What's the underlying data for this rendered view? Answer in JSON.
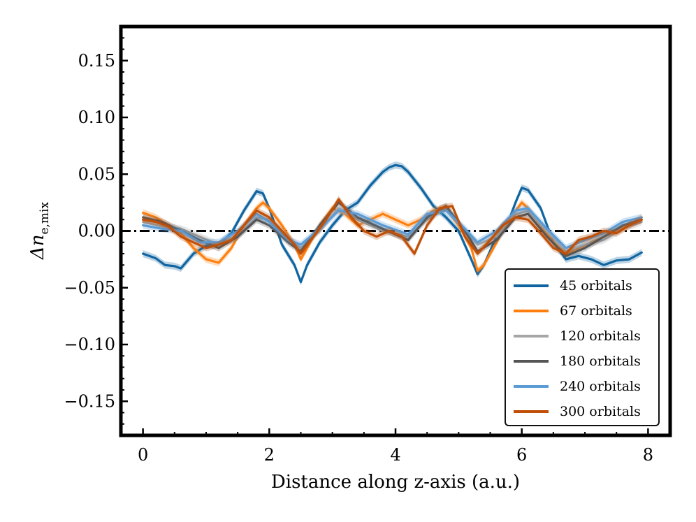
{
  "chart_data": {
    "type": "line",
    "xlabel": "Distance along z-axis (a.u.)",
    "ylabel_base": "Δn",
    "ylabel_sub": "e,mix",
    "xlim": [
      -0.35,
      8.35
    ],
    "ylim": [
      -0.18,
      0.18
    ],
    "xticks": [
      0,
      2,
      4,
      6,
      8
    ],
    "yticks": [
      -0.15,
      -0.1,
      -0.05,
      0.0,
      0.05,
      0.1,
      0.15
    ],
    "ytick_labels": [
      "−0.15",
      "−0.10",
      "−0.05",
      "0.00",
      "0.05",
      "0.10",
      "0.15"
    ],
    "reference_line": {
      "y": 0.0,
      "style": "dash-dot",
      "color": "#000000"
    },
    "legend_position": "lower-right",
    "series": [
      {
        "name": "45 orbitals",
        "color": "#1065a0",
        "points": [
          [
            0,
            -0.02
          ],
          [
            0.2,
            -0.024
          ],
          [
            0.35,
            -0.03
          ],
          [
            0.5,
            -0.031
          ],
          [
            0.6,
            -0.033
          ],
          [
            0.8,
            -0.02
          ],
          [
            1.0,
            -0.013
          ],
          [
            1.2,
            -0.012
          ],
          [
            1.4,
            -0.002
          ],
          [
            1.6,
            0.018
          ],
          [
            1.8,
            0.035
          ],
          [
            1.9,
            0.033
          ],
          [
            2.0,
            0.02
          ],
          [
            2.2,
            -0.012
          ],
          [
            2.4,
            -0.03
          ],
          [
            2.5,
            -0.045
          ],
          [
            2.6,
            -0.03
          ],
          [
            2.8,
            -0.01
          ],
          [
            3.0,
            0.005
          ],
          [
            3.2,
            0.018
          ],
          [
            3.4,
            0.025
          ],
          [
            3.6,
            0.04
          ],
          [
            3.8,
            0.052
          ],
          [
            3.9,
            0.056
          ],
          [
            4.0,
            0.058
          ],
          [
            4.1,
            0.057
          ],
          [
            4.2,
            0.052
          ],
          [
            4.4,
            0.038
          ],
          [
            4.6,
            0.022
          ],
          [
            4.8,
            0.012
          ],
          [
            5.0,
            0.0
          ],
          [
            5.2,
            -0.025
          ],
          [
            5.3,
            -0.038
          ],
          [
            5.4,
            -0.03
          ],
          [
            5.6,
            -0.005
          ],
          [
            5.8,
            0.01
          ],
          [
            5.9,
            0.025
          ],
          [
            6.0,
            0.038
          ],
          [
            6.1,
            0.036
          ],
          [
            6.3,
            0.02
          ],
          [
            6.5,
            -0.01
          ],
          [
            6.7,
            -0.025
          ],
          [
            6.9,
            -0.022
          ],
          [
            7.1,
            -0.025
          ],
          [
            7.3,
            -0.03
          ],
          [
            7.5,
            -0.026
          ],
          [
            7.7,
            -0.025
          ],
          [
            7.9,
            -0.019
          ]
        ]
      },
      {
        "name": "67 orbitals",
        "color": "#ff7f0e",
        "points": [
          [
            0,
            0.016
          ],
          [
            0.2,
            0.012
          ],
          [
            0.4,
            0.005
          ],
          [
            0.6,
            -0.002
          ],
          [
            0.8,
            -0.015
          ],
          [
            1.0,
            -0.025
          ],
          [
            1.2,
            -0.028
          ],
          [
            1.4,
            -0.015
          ],
          [
            1.6,
            0.005
          ],
          [
            1.8,
            0.02
          ],
          [
            1.9,
            0.025
          ],
          [
            2.0,
            0.02
          ],
          [
            2.2,
            0.005
          ],
          [
            2.4,
            -0.012
          ],
          [
            2.5,
            -0.025
          ],
          [
            2.6,
            -0.015
          ],
          [
            2.8,
            0.005
          ],
          [
            3.0,
            0.02
          ],
          [
            3.2,
            0.015
          ],
          [
            3.4,
            0.005
          ],
          [
            3.6,
            0.01
          ],
          [
            3.8,
            0.015
          ],
          [
            4.0,
            0.01
          ],
          [
            4.2,
            0.005
          ],
          [
            4.4,
            0.01
          ],
          [
            4.6,
            0.018
          ],
          [
            4.8,
            0.02
          ],
          [
            5.0,
            0.005
          ],
          [
            5.2,
            -0.015
          ],
          [
            5.3,
            -0.035
          ],
          [
            5.4,
            -0.03
          ],
          [
            5.6,
            -0.01
          ],
          [
            5.8,
            0.01
          ],
          [
            6.0,
            0.025
          ],
          [
            6.1,
            0.02
          ],
          [
            6.3,
            0.005
          ],
          [
            6.5,
            -0.01
          ],
          [
            6.7,
            -0.02
          ],
          [
            6.9,
            -0.015
          ],
          [
            7.1,
            -0.01
          ],
          [
            7.3,
            -0.005
          ],
          [
            7.5,
            0.0
          ],
          [
            7.7,
            0.005
          ],
          [
            7.9,
            0.012
          ]
        ]
      },
      {
        "name": "120 orbitals",
        "color": "#a6a6a6",
        "points": [
          [
            0,
            0.008
          ],
          [
            0.3,
            0.004
          ],
          [
            0.6,
            0.002
          ],
          [
            0.9,
            -0.005
          ],
          [
            1.2,
            -0.012
          ],
          [
            1.5,
            -0.005
          ],
          [
            1.8,
            0.012
          ],
          [
            2.0,
            0.01
          ],
          [
            2.3,
            -0.005
          ],
          [
            2.5,
            -0.015
          ],
          [
            2.8,
            0.0
          ],
          [
            3.1,
            0.02
          ],
          [
            3.4,
            0.01
          ],
          [
            3.8,
            0.0
          ],
          [
            4.2,
            -0.005
          ],
          [
            4.5,
            0.01
          ],
          [
            4.8,
            0.02
          ],
          [
            5.1,
            0.0
          ],
          [
            5.3,
            -0.012
          ],
          [
            5.6,
            -0.005
          ],
          [
            5.9,
            0.015
          ],
          [
            6.1,
            0.018
          ],
          [
            6.4,
            0.0
          ],
          [
            6.7,
            -0.018
          ],
          [
            7.0,
            -0.012
          ],
          [
            7.3,
            -0.008
          ],
          [
            7.6,
            0.002
          ],
          [
            7.9,
            0.008
          ]
        ]
      },
      {
        "name": "180 orbitals",
        "color": "#555555",
        "points": [
          [
            0,
            0.012
          ],
          [
            0.3,
            0.008
          ],
          [
            0.6,
            0.0
          ],
          [
            0.9,
            -0.008
          ],
          [
            1.2,
            -0.015
          ],
          [
            1.5,
            -0.005
          ],
          [
            1.8,
            0.01
          ],
          [
            2.0,
            0.005
          ],
          [
            2.3,
            -0.01
          ],
          [
            2.5,
            -0.018
          ],
          [
            2.8,
            0.005
          ],
          [
            3.1,
            0.025
          ],
          [
            3.4,
            0.012
          ],
          [
            3.8,
            0.002
          ],
          [
            4.2,
            -0.008
          ],
          [
            4.5,
            0.012
          ],
          [
            4.8,
            0.022
          ],
          [
            5.1,
            0.0
          ],
          [
            5.3,
            -0.018
          ],
          [
            5.6,
            -0.008
          ],
          [
            5.9,
            0.012
          ],
          [
            6.1,
            0.015
          ],
          [
            6.4,
            -0.005
          ],
          [
            6.7,
            -0.022
          ],
          [
            7.0,
            -0.015
          ],
          [
            7.3,
            -0.005
          ],
          [
            7.6,
            0.005
          ],
          [
            7.9,
            0.01
          ]
        ]
      },
      {
        "name": "240 orbitals",
        "color": "#5b9bd5",
        "points": [
          [
            0,
            0.005
          ],
          [
            0.3,
            0.002
          ],
          [
            0.6,
            0.0
          ],
          [
            0.9,
            -0.01
          ],
          [
            1.2,
            -0.01
          ],
          [
            1.5,
            0.0
          ],
          [
            1.8,
            0.015
          ],
          [
            2.0,
            0.008
          ],
          [
            2.3,
            -0.008
          ],
          [
            2.5,
            -0.012
          ],
          [
            2.8,
            0.002
          ],
          [
            3.1,
            0.018
          ],
          [
            3.4,
            0.015
          ],
          [
            3.8,
            0.005
          ],
          [
            4.2,
            -0.003
          ],
          [
            4.5,
            0.015
          ],
          [
            4.8,
            0.018
          ],
          [
            5.1,
            0.002
          ],
          [
            5.3,
            -0.01
          ],
          [
            5.6,
            0.0
          ],
          [
            5.9,
            0.018
          ],
          [
            6.1,
            0.02
          ],
          [
            6.4,
            0.002
          ],
          [
            6.7,
            -0.015
          ],
          [
            7.0,
            -0.008
          ],
          [
            7.3,
            -0.002
          ],
          [
            7.6,
            0.008
          ],
          [
            7.9,
            0.012
          ]
        ]
      },
      {
        "name": "300 orbitals",
        "color": "#c04f08",
        "points": [
          [
            0,
            0.01
          ],
          [
            0.2,
            0.008
          ],
          [
            0.4,
            0.004
          ],
          [
            0.6,
            -0.005
          ],
          [
            0.8,
            -0.01
          ],
          [
            1.0,
            -0.015
          ],
          [
            1.2,
            -0.012
          ],
          [
            1.4,
            -0.008
          ],
          [
            1.6,
            0.005
          ],
          [
            1.8,
            0.018
          ],
          [
            2.0,
            0.012
          ],
          [
            2.2,
            0.0
          ],
          [
            2.4,
            -0.012
          ],
          [
            2.5,
            -0.02
          ],
          [
            2.7,
            -0.005
          ],
          [
            2.9,
            0.01
          ],
          [
            3.1,
            0.028
          ],
          [
            3.3,
            0.012
          ],
          [
            3.5,
            0.0
          ],
          [
            3.7,
            -0.005
          ],
          [
            3.9,
            0.0
          ],
          [
            4.1,
            -0.005
          ],
          [
            4.3,
            -0.02
          ],
          [
            4.5,
            0.005
          ],
          [
            4.7,
            0.02
          ],
          [
            4.9,
            0.022
          ],
          [
            5.1,
            -0.005
          ],
          [
            5.3,
            -0.02
          ],
          [
            5.5,
            -0.008
          ],
          [
            5.7,
            0.005
          ],
          [
            5.9,
            0.012
          ],
          [
            6.1,
            0.01
          ],
          [
            6.3,
            -0.002
          ],
          [
            6.5,
            -0.015
          ],
          [
            6.7,
            -0.02
          ],
          [
            6.9,
            -0.008
          ],
          [
            7.1,
            -0.005
          ],
          [
            7.3,
            0.0
          ],
          [
            7.5,
            -0.002
          ],
          [
            7.7,
            0.005
          ],
          [
            7.9,
            0.01
          ]
        ]
      }
    ]
  }
}
